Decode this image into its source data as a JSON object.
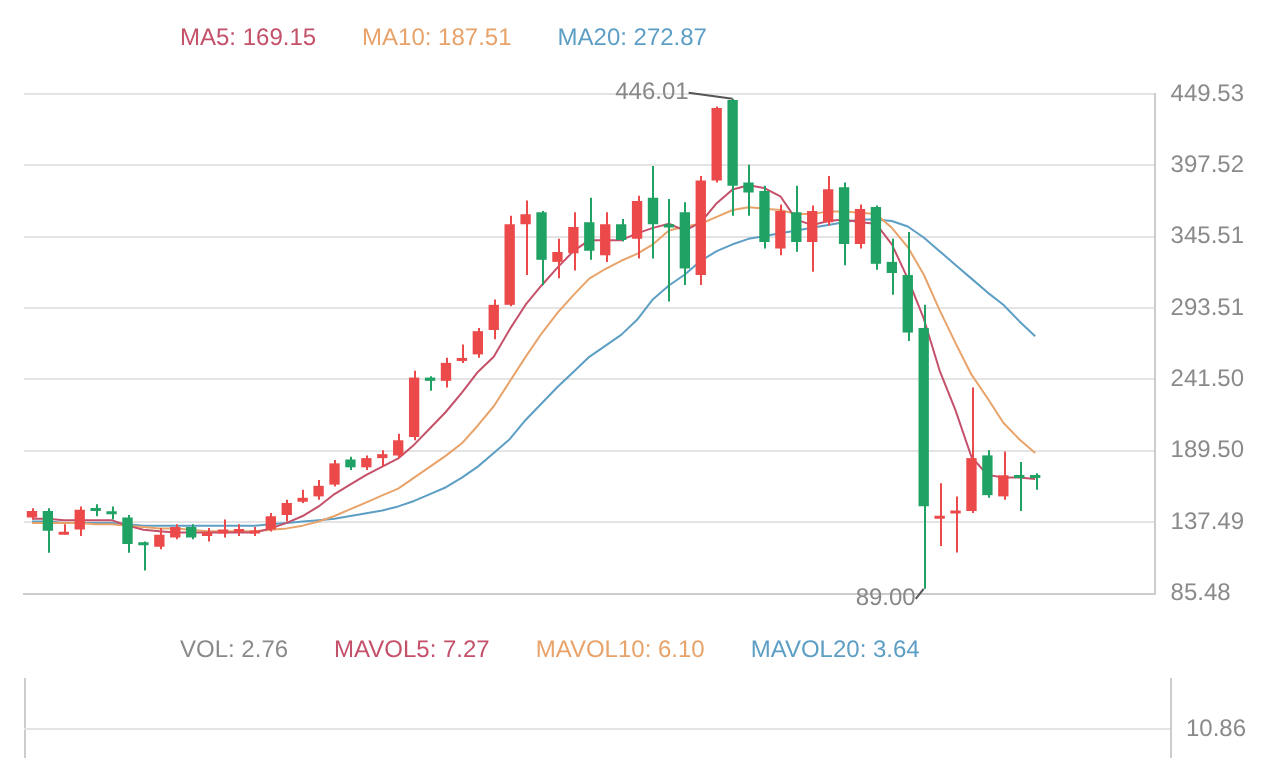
{
  "chart_data": [
    {
      "type": "candlestick",
      "legend": "top",
      "grid": "y",
      "tick_labels": "y",
      "categories": [
        null,
        null,
        null,
        null,
        null,
        null,
        null,
        null,
        null,
        null,
        null,
        null,
        null,
        null,
        null,
        null,
        null,
        null,
        null,
        null,
        null,
        null,
        null,
        null,
        null,
        null,
        null,
        null,
        null,
        null,
        null,
        null,
        null,
        null,
        null,
        null,
        null,
        null,
        null,
        null,
        null,
        null,
        null,
        null,
        null,
        null,
        null,
        null,
        null,
        null,
        null,
        null,
        null,
        null,
        null,
        null,
        null,
        null,
        null,
        null,
        null,
        null,
        null,
        null,
        null,
        null,
        null,
        null,
        null,
        null,
        null
      ],
      "ohlc": [
        [
          140.9,
          147.6,
          139.4,
          145.7
        ],
        [
          145.7,
          147.6,
          115.3,
          131.2
        ],
        [
          128.4,
          136.1,
          128.4,
          130.3
        ],
        [
          132.2,
          149.0,
          127.4,
          146.6
        ],
        [
          147.6,
          150.5,
          141.8,
          145.7
        ],
        [
          145.2,
          149.0,
          139.4,
          143.3
        ],
        [
          140.9,
          142.8,
          115.3,
          121.6
        ],
        [
          122.6,
          123.5,
          102.4,
          120.7
        ],
        [
          119.7,
          133.2,
          117.8,
          128.4
        ],
        [
          126.4,
          136.1,
          125.0,
          134.1
        ],
        [
          134.1,
          136.1,
          125.0,
          126.4
        ],
        [
          127.4,
          133.2,
          123.5,
          130.3
        ],
        [
          129.3,
          139.4,
          126.4,
          132.2
        ],
        [
          130.3,
          136.1,
          127.4,
          132.2
        ],
        [
          129.3,
          134.1,
          127.4,
          131.2
        ],
        [
          132.2,
          144.2,
          130.8,
          141.8
        ],
        [
          142.8,
          153.9,
          138.0,
          151.5
        ],
        [
          152.4,
          161.1,
          151.5,
          155.3
        ],
        [
          156.3,
          168.3,
          153.9,
          164.0
        ],
        [
          164.9,
          182.8,
          163.5,
          180.4
        ],
        [
          183.2,
          185.2,
          175.5,
          177.5
        ],
        [
          177.5,
          186.1,
          175.5,
          184.2
        ],
        [
          184.2,
          190.0,
          177.9,
          187.1
        ],
        [
          186.1,
          202.0,
          184.2,
          197.2
        ],
        [
          199.6,
          247.8,
          197.2,
          242.9
        ],
        [
          242.9,
          243.9,
          233.3,
          240.5
        ],
        [
          240.5,
          257.4,
          235.7,
          253.6
        ],
        [
          255.0,
          267.0,
          253.5,
          256.4
        ],
        [
          259.8,
          279.1,
          257.4,
          276.7
        ],
        [
          277.6,
          299.8,
          270.9,
          295.9
        ],
        [
          295.9,
          360.9,
          294.9,
          354.7
        ],
        [
          354.7,
          372.0,
          317.6,
          361.9
        ],
        [
          363.3,
          364.3,
          310.4,
          328.7
        ],
        [
          327.2,
          344.1,
          315.2,
          334.4
        ],
        [
          333.5,
          363.3,
          321.0,
          352.7
        ],
        [
          356.1,
          373.9,
          328.7,
          335.4
        ],
        [
          332.0,
          363.3,
          327.2,
          354.7
        ],
        [
          354.7,
          358.5,
          342.1,
          343.1
        ],
        [
          344.1,
          375.4,
          329.6,
          371.5
        ],
        [
          373.9,
          397.1,
          329.6,
          354.7
        ],
        [
          354.7,
          373.0,
          298.3,
          352.2
        ],
        [
          363.3,
          370.6,
          310.4,
          322.4
        ],
        [
          317.6,
          389.8,
          310.4,
          386.5
        ],
        [
          386.5,
          440.4,
          385.0,
          439.4
        ],
        [
          445.2,
          446.01,
          360.9,
          382.6
        ],
        [
          385.0,
          398.0,
          360.9,
          377.8
        ],
        [
          378.8,
          382.6,
          336.9,
          341.7
        ],
        [
          336.9,
          369.1,
          332.0,
          364.3
        ],
        [
          363.3,
          382.6,
          334.5,
          341.7
        ],
        [
          341.7,
          368.2,
          320.0,
          364.3
        ],
        [
          356.1,
          389.8,
          353.7,
          380.2
        ],
        [
          381.6,
          385.0,
          324.8,
          340.2
        ],
        [
          340.2,
          369.1,
          336.9,
          365.8
        ],
        [
          367.2,
          368.2,
          321.5,
          325.8
        ],
        [
          327.2,
          344.1,
          303.2,
          319.1
        ],
        [
          317.6,
          348.9,
          269.5,
          275.7
        ],
        [
          279.1,
          295.9,
          89.0,
          149.1
        ],
        [
          140.1,
          165.9,
          120.2,
          141.0
        ],
        [
          143.8,
          156.3,
          115.4,
          145.7
        ],
        [
          145.7,
          235.7,
          144.3,
          184.2
        ],
        [
          186.2,
          190.0,
          155.3,
          157.2
        ],
        [
          156.3,
          189.0,
          153.9,
          171.7
        ],
        [
          170.7,
          181.3,
          145.7,
          169.7
        ],
        [
          170.7,
          173.1,
          161.1,
          169.7
        ],
        null,
        null,
        null,
        null,
        null,
        null,
        null
      ],
      "colors": [
        "#ec4a4a",
        "#1fa263",
        "#ec4a4a",
        "#ec4a4a",
        "#1fa263",
        "#1fa263",
        "#1fa263",
        "#1fa263",
        "#ec4a4a",
        "#ec4a4a",
        "#1fa263",
        "#ec4a4a",
        "#ec4a4a",
        "#ec4a4a",
        "#ec4a4a",
        "#ec4a4a",
        "#ec4a4a",
        "#ec4a4a",
        "#ec4a4a",
        "#ec4a4a",
        "#1fa263",
        "#ec4a4a",
        "#ec4a4a",
        "#ec4a4a",
        "#ec4a4a",
        "#1fa263",
        "#ec4a4a",
        "#ec4a4a",
        "#ec4a4a",
        "#ec4a4a",
        "#ec4a4a",
        "#ec4a4a",
        "#1fa263",
        "#ec4a4a",
        "#ec4a4a",
        "#1fa263",
        "#ec4a4a",
        "#1fa263",
        "#ec4a4a",
        "#1fa263",
        "#1fa263",
        "#1fa263",
        "#ec4a4a",
        "#ec4a4a",
        "#1fa263",
        "#1fa263",
        "#1fa263",
        "#ec4a4a",
        "#1fa263",
        "#ec4a4a",
        "#ec4a4a",
        "#1fa263",
        "#ec4a4a",
        "#1fa263",
        "#1fa263",
        "#1fa263",
        "#1fa263",
        "#ec4a4a",
        "#ec4a4a",
        "#ec4a4a",
        "#1fa263",
        "#ec4a4a",
        "#1fa263",
        "#1fa263",
        null,
        null,
        null,
        null,
        null,
        null,
        null
      ],
      "series": [
        {
          "type": "line",
          "name": "MA5: 169.15",
          "color": "#c4506a",
          "values": [
            140,
            140,
            139,
            139,
            139,
            139,
            135,
            132,
            131,
            130,
            130,
            130,
            130,
            130,
            130,
            133,
            137,
            142,
            149,
            158,
            165,
            172,
            178,
            184,
            194,
            206,
            218,
            232,
            247,
            258,
            278,
            296,
            310,
            323,
            335,
            343,
            343,
            343,
            348,
            352,
            355,
            350,
            356,
            370,
            380,
            383,
            381,
            375,
            358,
            354,
            357,
            358,
            356,
            355,
            340,
            315,
            286,
            248,
            219,
            185,
            172,
            170,
            170,
            169,
            null,
            null,
            null,
            null,
            null,
            null,
            null
          ]
        },
        {
          "type": "line",
          "name": "MA10: 187.51",
          "color": "#e8a36a",
          "values": [
            137,
            137,
            137,
            137,
            136,
            136,
            135,
            134,
            133,
            133,
            132,
            131,
            131,
            131,
            131,
            132,
            133,
            135,
            138,
            142,
            147,
            152,
            157,
            162,
            170,
            178,
            186,
            195,
            208,
            222,
            240,
            258,
            275,
            290,
            303,
            315,
            322,
            328,
            333,
            340,
            350,
            353,
            355,
            360,
            365,
            367,
            366,
            365,
            362,
            362,
            364,
            364,
            363,
            362,
            352,
            338,
            318,
            292,
            268,
            245,
            228,
            210,
            198,
            188,
            null,
            null,
            null,
            null,
            null,
            null,
            null
          ]
        },
        {
          "type": "line",
          "name": "MA20: 272.87",
          "color": "#5c9ec4",
          "values": [
            138,
            138,
            137,
            137,
            137,
            137,
            136,
            135,
            135,
            135,
            135,
            135,
            135,
            135,
            135,
            136,
            137,
            138,
            139,
            140,
            142,
            144,
            146,
            149,
            153,
            158,
            163,
            170,
            178,
            188,
            198,
            212,
            224,
            236,
            247,
            258,
            266,
            274,
            285,
            300,
            310,
            318,
            328,
            335,
            340,
            344,
            346,
            348,
            350,
            352,
            354,
            356,
            358,
            358,
            357,
            353,
            345,
            335,
            325,
            315,
            305,
            296,
            284,
            273,
            null,
            null,
            null,
            null,
            null,
            null,
            null
          ]
        }
      ],
      "ylim": [
        85.48,
        449.53
      ],
      "yticks": [
        85.48,
        137.49,
        {
          "value": 189.5,
          "label": "189.50"
        },
        {
          "value": 241.5,
          "label": "241.50"
        },
        293.51,
        345.51,
        397.52,
        449.53
      ],
      "annotations": [
        "446.01",
        "89.00"
      ]
    },
    {
      "type": "other",
      "annotations": [
        "VOL: 2.76",
        "MAVOL5: 7.27",
        "MAVOL10: 6.10",
        "MAVOL20: 3.64",
        "10.86"
      ]
    }
  ]
}
